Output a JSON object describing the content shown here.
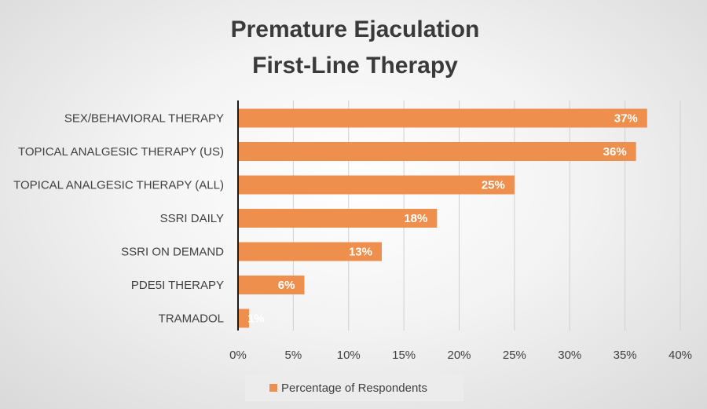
{
  "chart_data": {
    "type": "bar",
    "orientation": "horizontal",
    "title_lines": [
      "Premature Ejaculation",
      "First-Line Therapy"
    ],
    "categories": [
      "SEX/BEHAVIORAL THERAPY",
      "TOPICAL ANALGESIC THERAPY (US)",
      "TOPICAL ANALGESIC THERAPY (ALL)",
      "SSRI DAILY",
      "SSRI ON DEMAND",
      "PDE5I THERAPY",
      "TRAMADOL"
    ],
    "series": [
      {
        "name": "Percentage of Respondents",
        "values": [
          37,
          36,
          25,
          18,
          13,
          6,
          1
        ],
        "labels": [
          "37%",
          "36%",
          "25%",
          "18%",
          "13%",
          "6%",
          "1%"
        ]
      }
    ],
    "xlim": [
      0,
      40
    ],
    "x_ticks": [
      "0%",
      "5%",
      "10%",
      "15%",
      "20%",
      "25%",
      "30%",
      "35%",
      "40%"
    ],
    "grid": true,
    "legend_position": "bottom",
    "bar_color": "#ef8f4d",
    "axis_color": "#1a1a1a"
  }
}
